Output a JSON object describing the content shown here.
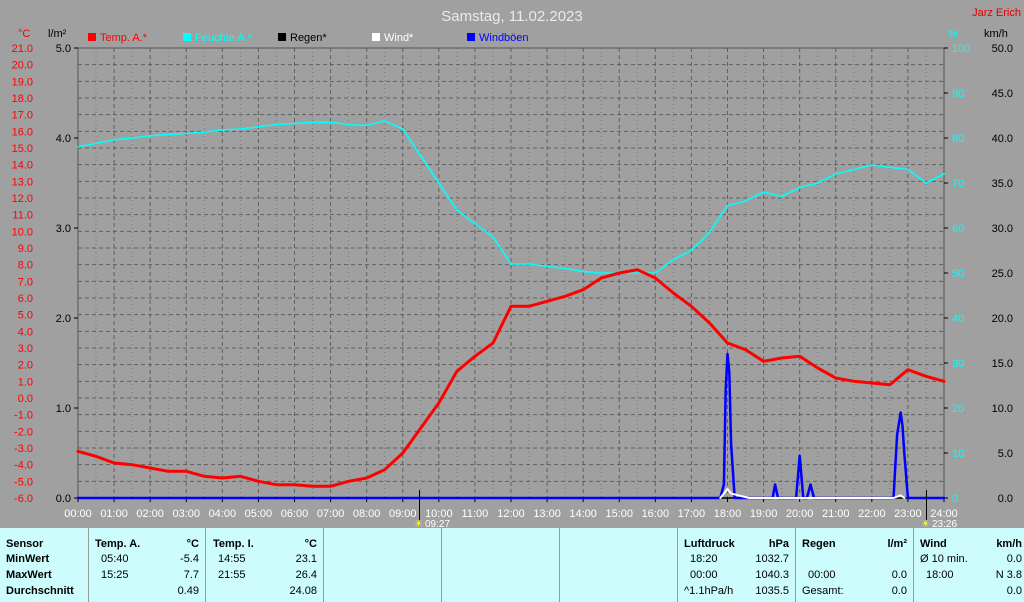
{
  "title": "Samstag, 11.02.2023",
  "author": "Jarz Erich",
  "units": {
    "temp": "°C",
    "rain": "l/m²",
    "humidity": "%",
    "wind": "km/h"
  },
  "legend": [
    {
      "label": "Temp. A.*",
      "color": "#ff0000"
    },
    {
      "label": "Feuchte A.*",
      "color": "#00ffff"
    },
    {
      "label": "Regen*",
      "color": "#000000"
    },
    {
      "label": "Wind*",
      "color": "#ffffff"
    },
    {
      "label": "Windböen",
      "color": "#0000ff"
    }
  ],
  "markers": {
    "sunrise": "09:27",
    "sunset": "23:26"
  },
  "chart_data": {
    "type": "line",
    "x_ticks": [
      "00:00",
      "01:00",
      "02:00",
      "03:00",
      "04:00",
      "05:00",
      "06:00",
      "07:00",
      "08:00",
      "09:00",
      "10:00",
      "11:00",
      "12:00",
      "13:00",
      "14:00",
      "15:00",
      "16:00",
      "17:00",
      "18:00",
      "19:00",
      "20:00",
      "21:00",
      "22:00",
      "23:00",
      "24:00"
    ],
    "temp_ticks": [
      "21.0",
      "20.0",
      "19.0",
      "18.0",
      "17.0",
      "16.0",
      "15.0",
      "14.0",
      "13.0",
      "12.0",
      "11.0",
      "10.0",
      "9.0",
      "8.0",
      "7.0",
      "6.0",
      "5.0",
      "4.0",
      "3.0",
      "2.0",
      "1.0",
      "0.0",
      "-1.0",
      "-2.0",
      "-3.0",
      "-4.0",
      "-5.0",
      "-6.0"
    ],
    "rain_ticks": [
      "5.0",
      "4.0",
      "3.0",
      "2.0",
      "1.0",
      "0.0"
    ],
    "humidity_ticks": [
      "100",
      "90",
      "80",
      "70",
      "60",
      "50",
      "40",
      "30",
      "20",
      "10",
      "0"
    ],
    "wind_ticks": [
      "50.0",
      "45.0",
      "40.0",
      "35.0",
      "30.0",
      "25.0",
      "20.0",
      "15.0",
      "10.0",
      "5.0",
      "0.0"
    ],
    "ylim_temp": [
      -6,
      21
    ],
    "ylim_rain": [
      0,
      5
    ],
    "ylim_humidity": [
      0,
      100
    ],
    "ylim_wind": [
      0,
      50
    ],
    "grid": true,
    "series": [
      {
        "name": "Temp. A.*",
        "color": "#ff0000",
        "x": [
          0,
          0.5,
          1,
          1.5,
          2,
          2.5,
          3,
          3.5,
          4,
          4.5,
          5,
          5.5,
          6,
          6.5,
          7,
          7.5,
          8,
          8.5,
          9,
          9.5,
          10,
          10.5,
          11,
          11.5,
          12,
          12.5,
          13,
          13.5,
          14,
          14.5,
          15,
          15.5,
          16,
          16.5,
          17,
          17.5,
          18,
          18.5,
          19,
          19.5,
          20,
          20.5,
          21,
          21.5,
          22,
          22.5,
          23,
          23.5,
          24
        ],
        "y": [
          -3.2,
          -3.5,
          -3.9,
          -4.0,
          -4.2,
          -4.4,
          -4.4,
          -4.7,
          -4.8,
          -4.7,
          -5.0,
          -5.2,
          -5.2,
          -5.3,
          -5.3,
          -5.0,
          -4.8,
          -4.3,
          -3.3,
          -1.8,
          -0.3,
          1.6,
          2.5,
          3.3,
          5.5,
          5.5,
          5.8,
          6.1,
          6.5,
          7.2,
          7.5,
          7.7,
          7.2,
          6.3,
          5.5,
          4.5,
          3.3,
          2.9,
          2.2,
          2.4,
          2.5,
          1.8,
          1.2,
          1.0,
          0.9,
          0.8,
          1.7,
          1.3,
          1.0
        ]
      },
      {
        "name": "Feuchte A.*",
        "color": "#00ffff",
        "x": [
          0,
          0.5,
          1,
          1.5,
          2,
          2.5,
          3,
          3.5,
          4,
          4.5,
          5,
          5.5,
          6,
          6.5,
          7,
          7.5,
          8,
          8.5,
          9,
          9.5,
          10,
          10.5,
          11,
          11.5,
          12,
          12.5,
          13,
          13.5,
          14,
          14.5,
          15,
          15.5,
          16,
          16.5,
          17,
          17.5,
          18,
          18.5,
          19,
          19.5,
          20,
          20.5,
          21,
          21.5,
          22,
          22.5,
          23,
          23.5,
          24
        ],
        "y": [
          78,
          78.8,
          79.6,
          80,
          80.5,
          80.8,
          81,
          81.3,
          81.8,
          82,
          82.5,
          83,
          83.2,
          83.5,
          83.5,
          83,
          82.8,
          83.8,
          82,
          76,
          70,
          64,
          61,
          58,
          52,
          52,
          51.5,
          51,
          50.3,
          50,
          50,
          50,
          50,
          53,
          55,
          59,
          65,
          66,
          68,
          67,
          69,
          70,
          72,
          73,
          74,
          73.5,
          73,
          70,
          72
        ]
      },
      {
        "name": "Regen*",
        "color": "#000000",
        "x": [
          0,
          24
        ],
        "y": [
          0,
          0
        ]
      },
      {
        "name": "Wind*",
        "color": "#ffffff",
        "x": [
          17.8,
          17.9,
          18.0,
          18.1,
          18.3,
          18.6,
          18.9,
          22.6,
          22.8,
          22.9
        ],
        "y": [
          0,
          0.5,
          1.0,
          0.5,
          0.3,
          0.0,
          0.0,
          0.0,
          0.3,
          0.0
        ]
      },
      {
        "name": "Windböen",
        "color": "#0000ff",
        "x": [
          0,
          17.8,
          17.9,
          17.95,
          18.0,
          18.05,
          18.1,
          18.2,
          18.3,
          19.25,
          19.32,
          19.4,
          19.9,
          20.0,
          20.1,
          20.2,
          20.3,
          20.4,
          20.5,
          22.6,
          22.7,
          22.8,
          22.85,
          22.9,
          23.0,
          23.1,
          24
        ],
        "y": [
          0,
          0,
          1.5,
          12,
          16,
          14,
          6,
          0,
          0,
          0,
          1.5,
          0,
          0,
          4.7,
          0,
          0,
          1.5,
          0,
          0,
          0,
          7,
          9.5,
          8,
          5,
          0,
          0,
          0
        ]
      }
    ]
  },
  "stats": {
    "row_labels": [
      "Sensor",
      "MinWert",
      "MaxWert",
      "Durchschnitt"
    ],
    "temp_a": {
      "header": "Temp. A.",
      "unit": "°C",
      "min_time": "05:40",
      "min": "-5.4",
      "max_time": "15:25",
      "max": "7.7",
      "avg": "0.49"
    },
    "temp_i": {
      "header": "Temp. I.",
      "unit": "°C",
      "min_time": "14:55",
      "min": "23.1",
      "max_time": "21:55",
      "max": "26.4",
      "avg": "24.08"
    },
    "pressure": {
      "header": "Luftdruck",
      "unit": "hPa",
      "min_time": "18:20",
      "min": "1032.7",
      "max_time": "00:00",
      "max": "1040.3",
      "trend": "^1.1hPa/h",
      "avg": "1035.5"
    },
    "rain": {
      "header": "Regen",
      "unit": "l/m²",
      "max_time": "00:00",
      "max": "0.0",
      "total_label": "Gesamt:",
      "total": "0.0"
    },
    "wind": {
      "header": "Wind",
      "unit": "km/h",
      "avg_label": "Ø 10 min.",
      "avg_val": "0.0",
      "max_time": "18:00",
      "max": "N 3.8",
      "avg": "0.0"
    }
  }
}
